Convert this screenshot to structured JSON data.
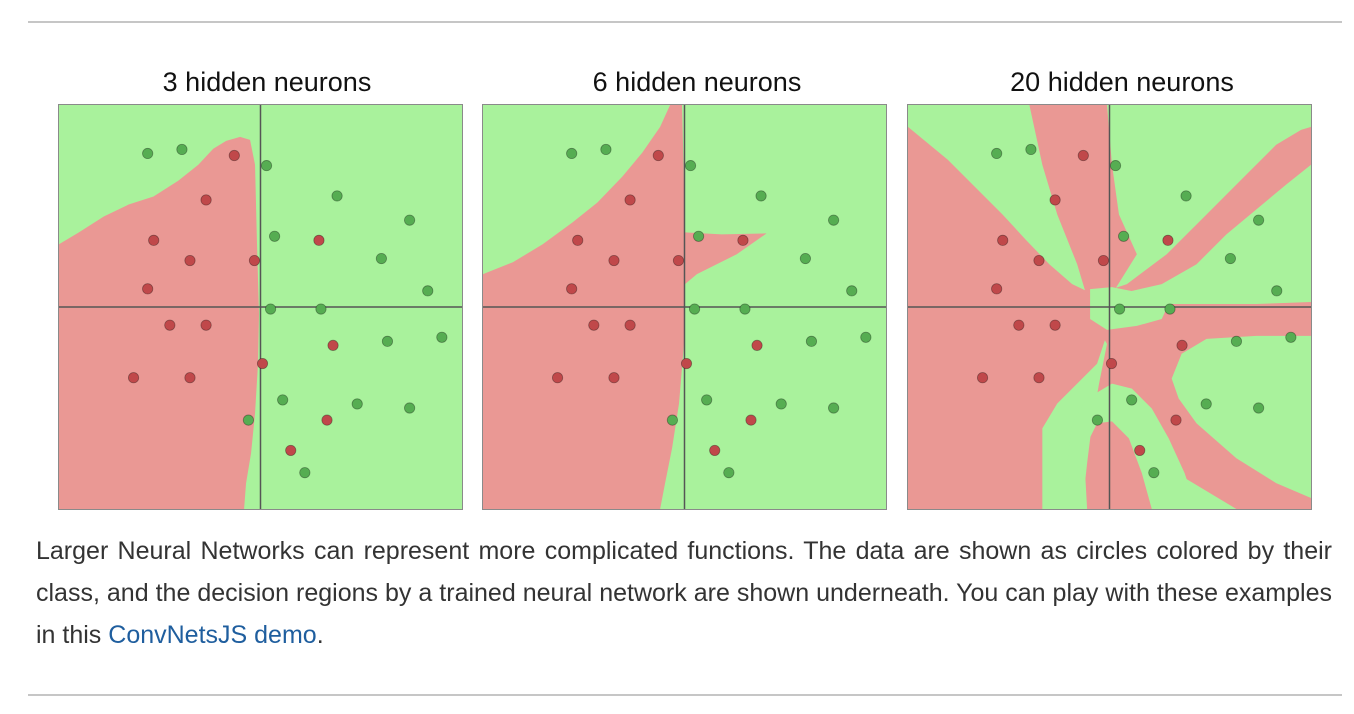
{
  "figure": {
    "colors": {
      "class_a_region": "#ea9894",
      "class_b_region": "#a9f29c",
      "class_a_point": "#c0484a",
      "class_b_point": "#56ad52",
      "axis_line": "#555555"
    },
    "panels": [
      {
        "title": "3 hidden neurons",
        "red_points": [
          [
            -0.13,
            0.75
          ],
          [
            -0.27,
            0.53
          ],
          [
            -0.53,
            0.33
          ],
          [
            -0.35,
            0.23
          ],
          [
            -0.56,
            0.09
          ],
          [
            -0.03,
            0.23
          ],
          [
            0.29,
            0.33
          ],
          [
            -0.45,
            -0.09
          ],
          [
            -0.27,
            -0.09
          ],
          [
            0.36,
            -0.19
          ],
          [
            0.01,
            -0.28
          ],
          [
            -0.63,
            -0.35
          ],
          [
            -0.35,
            -0.35
          ],
          [
            0.33,
            -0.56
          ],
          [
            0.15,
            -0.71
          ]
        ],
        "green_points": [
          [
            -0.56,
            0.76
          ],
          [
            -0.39,
            0.78
          ],
          [
            0.03,
            0.7
          ],
          [
            0.38,
            0.55
          ],
          [
            0.74,
            0.43
          ],
          [
            0.07,
            0.35
          ],
          [
            0.6,
            0.24
          ],
          [
            0.83,
            0.08
          ],
          [
            0.05,
            -0.01
          ],
          [
            0.3,
            -0.01
          ],
          [
            0.63,
            -0.17
          ],
          [
            0.9,
            -0.15
          ],
          [
            0.11,
            -0.46
          ],
          [
            0.48,
            -0.48
          ],
          [
            0.74,
            -0.5
          ],
          [
            -0.06,
            -0.56
          ],
          [
            0.22,
            -0.82
          ]
        ]
      },
      {
        "title": "6 hidden neurons",
        "red_points": [
          [
            -0.13,
            0.75
          ],
          [
            -0.27,
            0.53
          ],
          [
            -0.53,
            0.33
          ],
          [
            -0.35,
            0.23
          ],
          [
            -0.56,
            0.09
          ],
          [
            -0.03,
            0.23
          ],
          [
            0.29,
            0.33
          ],
          [
            -0.45,
            -0.09
          ],
          [
            -0.27,
            -0.09
          ],
          [
            0.36,
            -0.19
          ],
          [
            0.01,
            -0.28
          ],
          [
            -0.63,
            -0.35
          ],
          [
            -0.35,
            -0.35
          ],
          [
            0.33,
            -0.56
          ],
          [
            0.15,
            -0.71
          ]
        ],
        "green_points": [
          [
            -0.56,
            0.76
          ],
          [
            -0.39,
            0.78
          ],
          [
            0.03,
            0.7
          ],
          [
            0.38,
            0.55
          ],
          [
            0.74,
            0.43
          ],
          [
            0.07,
            0.35
          ],
          [
            0.6,
            0.24
          ],
          [
            0.83,
            0.08
          ],
          [
            0.05,
            -0.01
          ],
          [
            0.3,
            -0.01
          ],
          [
            0.63,
            -0.17
          ],
          [
            0.9,
            -0.15
          ],
          [
            0.11,
            -0.46
          ],
          [
            0.48,
            -0.48
          ],
          [
            0.74,
            -0.5
          ],
          [
            -0.06,
            -0.56
          ],
          [
            0.22,
            -0.82
          ]
        ]
      },
      {
        "title": "20 hidden neurons",
        "red_points": [
          [
            -0.13,
            0.75
          ],
          [
            -0.27,
            0.53
          ],
          [
            -0.53,
            0.33
          ],
          [
            -0.35,
            0.23
          ],
          [
            -0.56,
            0.09
          ],
          [
            -0.03,
            0.23
          ],
          [
            0.29,
            0.33
          ],
          [
            -0.45,
            -0.09
          ],
          [
            -0.27,
            -0.09
          ],
          [
            0.36,
            -0.19
          ],
          [
            0.01,
            -0.28
          ],
          [
            -0.63,
            -0.35
          ],
          [
            -0.35,
            -0.35
          ],
          [
            0.33,
            -0.56
          ],
          [
            0.15,
            -0.71
          ]
        ],
        "green_points": [
          [
            -0.56,
            0.76
          ],
          [
            -0.39,
            0.78
          ],
          [
            0.03,
            0.7
          ],
          [
            0.38,
            0.55
          ],
          [
            0.74,
            0.43
          ],
          [
            0.07,
            0.35
          ],
          [
            0.6,
            0.24
          ],
          [
            0.83,
            0.08
          ],
          [
            0.05,
            -0.01
          ],
          [
            0.3,
            -0.01
          ],
          [
            0.63,
            -0.17
          ],
          [
            0.9,
            -0.15
          ],
          [
            0.11,
            -0.46
          ],
          [
            0.48,
            -0.48
          ],
          [
            0.74,
            -0.5
          ],
          [
            -0.06,
            -0.56
          ],
          [
            0.22,
            -0.82
          ]
        ]
      }
    ]
  },
  "caption": {
    "text": "Larger Neural Networks can represent more complicated functions. The data are shown as circles colored by their class, and the decision regions by a trained neural network are shown underneath. You can play with these examples in this ",
    "link_text": "ConvNetsJS demo",
    "end_text": "."
  }
}
